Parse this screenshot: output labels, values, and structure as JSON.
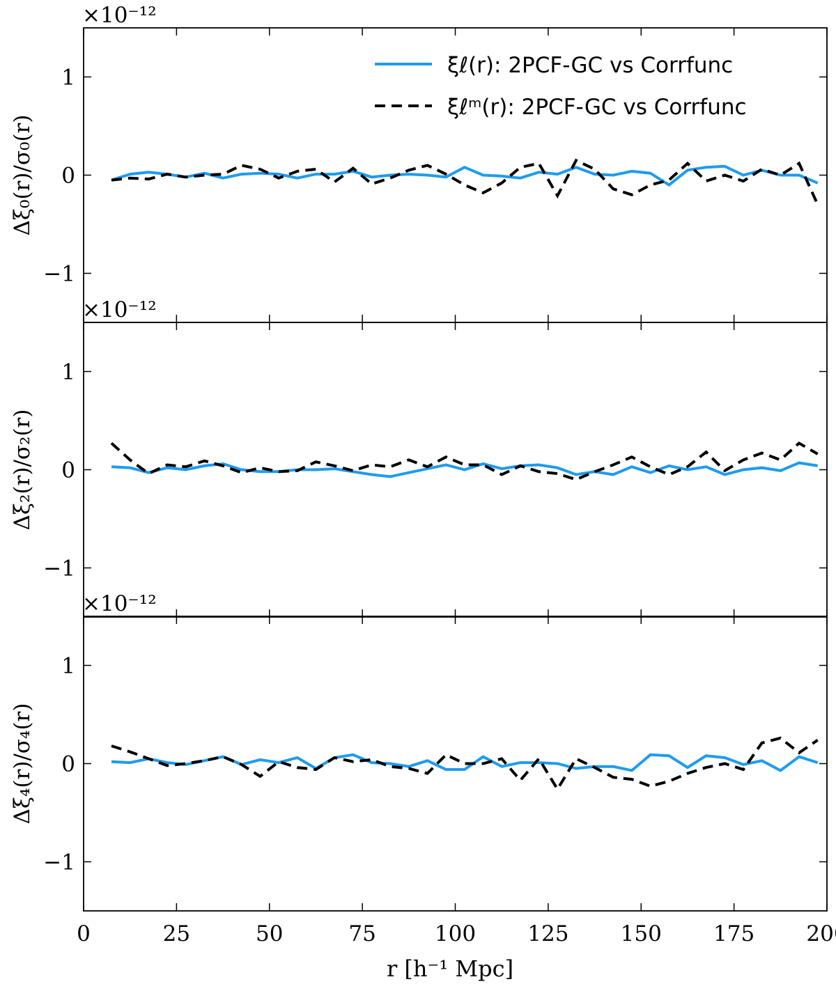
{
  "colors": {
    "blue": "#1f9bee",
    "black": "#000000"
  },
  "chart_data": {
    "type": "line",
    "x_label": "r [h⁻¹ Mpc]",
    "x_ticks": [
      "0",
      "25",
      "50",
      "75",
      "100",
      "125",
      "150",
      "175",
      "200"
    ],
    "x_tick_values": [
      0,
      25,
      50,
      75,
      100,
      125,
      150,
      175,
      200
    ],
    "xlim": [
      0,
      200
    ],
    "ylim": [
      -1.5,
      1.5
    ],
    "y_ticks": [
      "−1",
      "0",
      "1"
    ],
    "y_tick_values": [
      -1,
      0,
      1
    ],
    "scale_label": "×10⁻¹²",
    "x": [
      7.5,
      12.5,
      17.5,
      22.5,
      27.5,
      32.5,
      37.5,
      42.5,
      47.5,
      52.5,
      57.5,
      62.5,
      67.5,
      72.5,
      77.5,
      82.5,
      87.5,
      92.5,
      97.5,
      102.5,
      107.5,
      112.5,
      117.5,
      122.5,
      127.5,
      132.5,
      137.5,
      142.5,
      147.5,
      152.5,
      157.5,
      162.5,
      167.5,
      172.5,
      177.5,
      182.5,
      187.5,
      192.5,
      197.5
    ],
    "legend": [
      {
        "label": "ξℓ(r): 2PCF-GC vs Corrfunc",
        "style": "solid"
      },
      {
        "label": "ξℓᵐ(r): 2PCF-GC vs Corrfunc",
        "style": "dashed"
      }
    ],
    "panels": [
      {
        "ylabel": "Δξ₀(r)/σ₀(r)",
        "series": [
          {
            "name": "2PCF-GC vs Corrfunc",
            "style": "solid",
            "values": [
              -0.05,
              0.01,
              0.03,
              0.01,
              -0.02,
              0.02,
              -0.03,
              0.01,
              0.02,
              0.01,
              -0.03,
              0.01,
              0.01,
              0.04,
              -0.02,
              0.0,
              0.01,
              0.0,
              -0.02,
              0.08,
              0.0,
              -0.01,
              -0.03,
              0.03,
              0.01,
              0.08,
              0.01,
              0.0,
              0.04,
              0.02,
              -0.1,
              0.05,
              0.08,
              0.09,
              0.0,
              0.05,
              0.0,
              0.0,
              -0.08
            ]
          },
          {
            "name": "2PCF-GC vs Corrfunc (m)",
            "style": "dashed",
            "values": [
              -0.05,
              -0.03,
              -0.04,
              0.01,
              -0.02,
              0.0,
              0.01,
              0.1,
              0.06,
              -0.03,
              0.04,
              0.06,
              -0.07,
              0.07,
              -0.09,
              -0.03,
              0.05,
              0.1,
              0.01,
              -0.1,
              -0.18,
              -0.08,
              0.08,
              0.12,
              -0.21,
              0.15,
              0.06,
              -0.14,
              -0.2,
              -0.1,
              -0.05,
              0.12,
              -0.06,
              0.0,
              -0.06,
              0.06,
              0.0,
              0.12,
              -0.3
            ]
          }
        ]
      },
      {
        "ylabel": "Δξ₂(r)/σ₂(r)",
        "series": [
          {
            "name": "2PCF-GC vs Corrfunc",
            "style": "solid",
            "values": [
              0.03,
              0.02,
              -0.03,
              0.02,
              0.0,
              0.04,
              0.06,
              0.0,
              -0.02,
              -0.02,
              0.0,
              0.0,
              0.01,
              -0.02,
              -0.05,
              -0.07,
              -0.03,
              0.01,
              0.05,
              0.0,
              0.06,
              0.01,
              0.04,
              0.05,
              0.02,
              -0.05,
              -0.02,
              -0.05,
              0.03,
              -0.03,
              0.04,
              0.0,
              0.03,
              -0.05,
              0.0,
              0.02,
              -0.01,
              0.07,
              0.04
            ]
          },
          {
            "name": "2PCF-GC vs Corrfunc (m)",
            "style": "dashed",
            "values": [
              0.27,
              0.1,
              -0.04,
              0.05,
              0.03,
              0.09,
              0.04,
              -0.03,
              0.02,
              -0.02,
              -0.01,
              0.08,
              0.04,
              -0.01,
              0.05,
              0.03,
              0.1,
              0.03,
              0.13,
              0.05,
              0.05,
              -0.05,
              0.04,
              -0.02,
              -0.04,
              -0.1,
              -0.02,
              0.05,
              0.13,
              0.03,
              -0.05,
              0.03,
              0.18,
              -0.01,
              0.1,
              0.17,
              0.1,
              0.27,
              0.16
            ]
          }
        ]
      },
      {
        "ylabel": "Δξ₄(r)/σ₄(r)",
        "series": [
          {
            "name": "2PCF-GC vs Corrfunc",
            "style": "solid",
            "values": [
              0.02,
              0.01,
              0.05,
              0.01,
              -0.01,
              0.03,
              0.07,
              -0.01,
              0.04,
              0.01,
              0.06,
              -0.05,
              0.06,
              0.09,
              0.01,
              0.0,
              -0.03,
              0.03,
              -0.06,
              -0.06,
              0.07,
              -0.03,
              0.01,
              0.01,
              0.0,
              -0.05,
              -0.03,
              -0.03,
              -0.07,
              0.09,
              0.08,
              -0.04,
              0.08,
              0.06,
              -0.01,
              0.03,
              -0.07,
              0.07,
              0.01
            ]
          },
          {
            "name": "2PCF-GC vs Corrfunc (m)",
            "style": "dashed",
            "values": [
              0.18,
              0.12,
              0.05,
              -0.02,
              0.0,
              0.03,
              0.07,
              -0.01,
              -0.13,
              0.02,
              -0.04,
              -0.06,
              0.06,
              0.02,
              0.04,
              -0.03,
              -0.05,
              -0.1,
              0.09,
              0.0,
              0.0,
              0.05,
              -0.17,
              0.05,
              -0.26,
              0.05,
              -0.04,
              -0.14,
              -0.16,
              -0.23,
              -0.18,
              -0.1,
              -0.04,
              0.0,
              -0.06,
              0.21,
              0.26,
              0.11,
              0.24
            ]
          }
        ]
      }
    ]
  }
}
